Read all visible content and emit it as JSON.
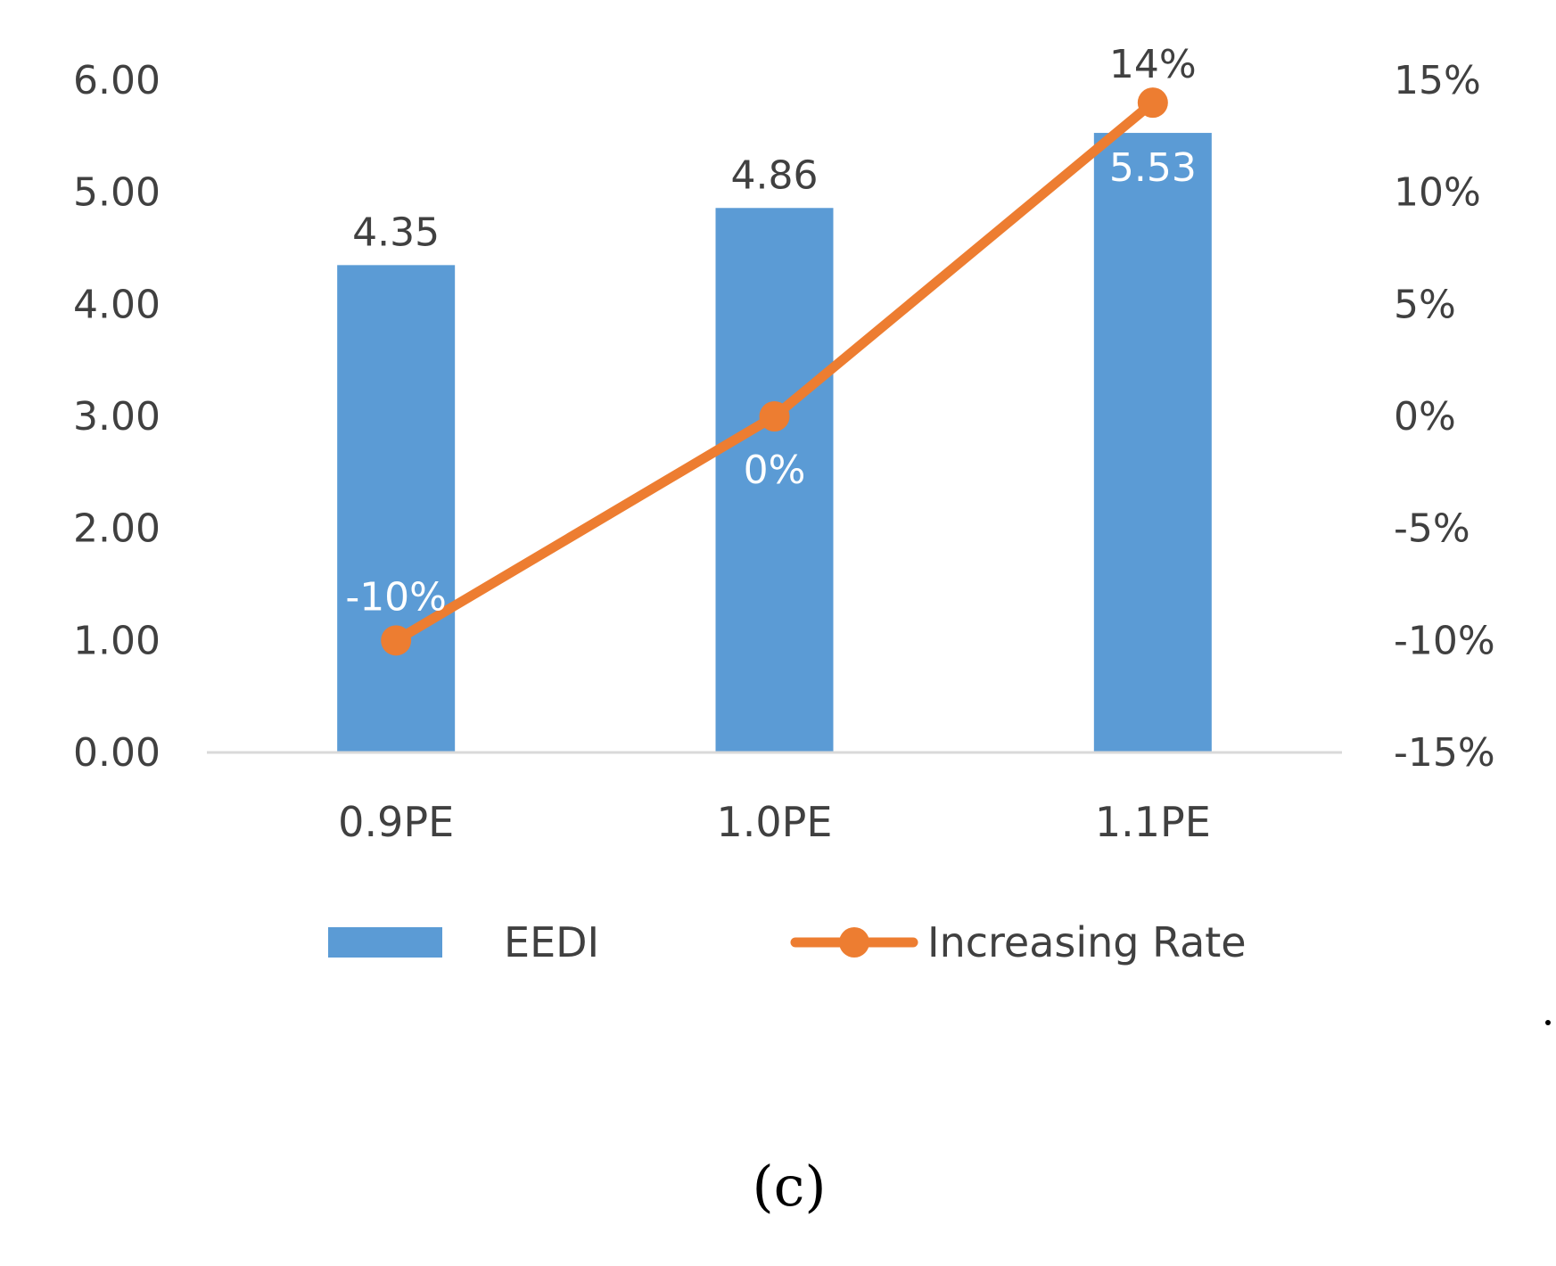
{
  "chart_data": {
    "type": "bar",
    "categories": [
      "0.9PE",
      "1.0PE",
      "1.1PE"
    ],
    "series": [
      {
        "name": "EEDI",
        "kind": "bar",
        "axis": "left",
        "values": [
          4.35,
          4.86,
          5.53
        ],
        "labels": [
          "4.35",
          "4.86",
          "5.53"
        ],
        "color": "#5B9BD5"
      },
      {
        "name": "Increasing Rate",
        "kind": "line",
        "axis": "right",
        "values": [
          -10,
          0,
          14
        ],
        "labels": [
          "-10%",
          "0%",
          "14%"
        ],
        "color": "#ED7D31"
      }
    ],
    "y_left": {
      "min": 0,
      "max": 6,
      "ticks": [
        0,
        1,
        2,
        3,
        4,
        5,
        6
      ],
      "tick_labels": [
        "0.00",
        "1.00",
        "2.00",
        "3.00",
        "4.00",
        "5.00",
        "6.00"
      ]
    },
    "y_right": {
      "min": -15,
      "max": 15,
      "ticks": [
        -15,
        -10,
        -5,
        0,
        5,
        10,
        15
      ],
      "tick_labels": [
        "-15%",
        "-10%",
        "-5%",
        "0%",
        "5%",
        "10%",
        "15%"
      ]
    },
    "gridlines": false,
    "legend": {
      "position": "bottom",
      "entries": [
        "EEDI",
        "Increasing Rate"
      ]
    },
    "caption": "(c)",
    "axis_color": "#D9D9D9",
    "text_color": "#404040"
  }
}
